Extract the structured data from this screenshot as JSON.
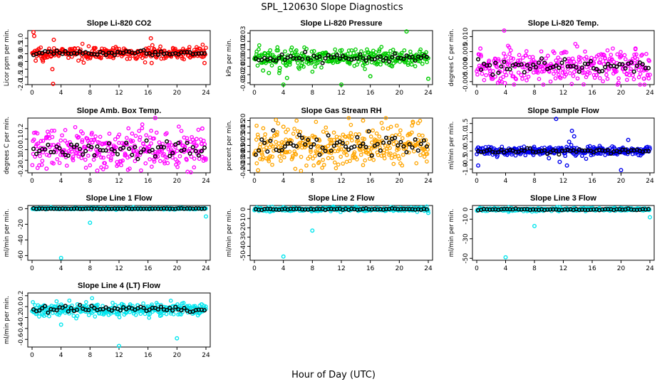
{
  "figure": {
    "title": "SPL_120630  Slope Diagnostics",
    "xlabel": "Hour of Day (UTC)"
  },
  "chart_data": [
    {
      "type": "scatter",
      "title": "Slope Li-820 CO2",
      "ylabel": "Licor ppm per min.",
      "color": "#ff0000",
      "xlim": [
        0,
        24
      ],
      "xticks": [
        0,
        4,
        8,
        12,
        16,
        20,
        24
      ],
      "ylim": [
        -2.0,
        1.5
      ],
      "yticks": [
        "-2.0",
        "-1.5",
        "-1.0",
        "-0.5",
        "0.0",
        "0.5",
        "1.0"
      ],
      "ytick_values": [
        -2.0,
        -1.5,
        -1.0,
        -0.5,
        0.0,
        0.5,
        1.0
      ],
      "spread": 0.18,
      "center": 0.05,
      "outliers": [
        [
          0.2,
          1.4
        ],
        [
          0.3,
          1.15
        ],
        [
          0.5,
          -0.45
        ],
        [
          1.5,
          -0.5
        ],
        [
          2.8,
          -1.0
        ],
        [
          2.9,
          -1.95
        ],
        [
          3.0,
          0.9
        ],
        [
          16.4,
          1.0
        ],
        [
          16.6,
          0.55
        ],
        [
          16.5,
          -0.6
        ],
        [
          23.8,
          -0.6
        ]
      ]
    },
    {
      "type": "scatter",
      "title": "Slope Li-820 Pressure",
      "ylabel": "kPa per min.",
      "color": "#00cc00",
      "xlim": [
        0,
        24
      ],
      "xticks": [
        0,
        4,
        8,
        12,
        16,
        20,
        24
      ],
      "ylim": [
        -0.032,
        0.033
      ],
      "yticks": [
        "-0.03",
        "-0.02",
        "-0.01",
        "0.00",
        "0.01",
        "0.02",
        "0.03"
      ],
      "ytick_values": [
        -0.03,
        -0.02,
        -0.01,
        0.0,
        0.01,
        0.02,
        0.03
      ],
      "spread": 0.006,
      "center": 0.0,
      "outliers": [
        [
          1.2,
          -0.015
        ],
        [
          2.0,
          -0.018
        ],
        [
          3.5,
          -0.012
        ],
        [
          4.0,
          -0.033
        ],
        [
          4.5,
          -0.024
        ],
        [
          8.0,
          -0.005
        ],
        [
          12.0,
          -0.032
        ],
        [
          16.0,
          -0.022
        ],
        [
          19.0,
          -0.01
        ],
        [
          21.0,
          0.032
        ],
        [
          24.0,
          -0.025
        ]
      ]
    },
    {
      "type": "scatter",
      "title": "Slope Li-820 Temp.",
      "ylabel": "degrees C per min.",
      "color": "#ff00ff",
      "xlim": [
        0,
        24
      ],
      "xticks": [
        0,
        4,
        8,
        12,
        16,
        20,
        24
      ],
      "ylim": [
        -0.006,
        0.012
      ],
      "yticks": [
        "-0.005",
        "0.000",
        "0.005",
        "0.010"
      ],
      "ytick_values": [
        -0.005,
        0.0,
        0.005,
        0.01
      ],
      "spread": 0.0028,
      "center": 0.0002,
      "outliers": [
        [
          3.8,
          0.012
        ],
        [
          3.9,
          -0.0055
        ],
        [
          0.5,
          0.006
        ],
        [
          22.0,
          0.006
        ],
        [
          23.2,
          -0.004
        ]
      ]
    },
    {
      "type": "scatter",
      "title": "Slope Amb. Box Temp.",
      "ylabel": "degrees C per min.",
      "color": "#ff00ff",
      "xlim": [
        0,
        24
      ],
      "xticks": [
        0,
        4,
        8,
        12,
        16,
        20,
        24
      ],
      "ylim": [
        -0.22,
        0.3
      ],
      "yticks": [
        "-0.2",
        "-0.1",
        "0.0",
        "0.1",
        "0.2"
      ],
      "ytick_values": [
        -0.2,
        -0.1,
        0.0,
        0.1,
        0.2
      ],
      "spread": 0.09,
      "center": 0.0,
      "outliers": [
        [
          17.0,
          0.3
        ],
        [
          9.0,
          -0.2
        ],
        [
          2.0,
          -0.18
        ],
        [
          23.5,
          0.2
        ]
      ]
    },
    {
      "type": "scatter",
      "title": "Slope Gas Stream RH",
      "ylabel": "percent per min.",
      "color": "#ffa500",
      "xlim": [
        0,
        24
      ],
      "xticks": [
        0,
        4,
        8,
        12,
        16,
        20,
        24
      ],
      "ylim": [
        -0.22,
        0.22
      ],
      "yticks": [
        "-0.20",
        "-0.15",
        "-0.10",
        "-0.05",
        "0.00",
        "0.05",
        "0.10",
        "0.15",
        "0.20"
      ],
      "ytick_values": [
        -0.2,
        -0.15,
        -0.1,
        -0.05,
        0.0,
        0.05,
        0.1,
        0.15,
        0.2
      ],
      "spread": 0.085,
      "center": 0.0,
      "outliers": [
        [
          15.0,
          0.2
        ],
        [
          0.5,
          -0.2
        ],
        [
          4.0,
          0.15
        ]
      ]
    },
    {
      "type": "scatter",
      "title": "Slope Sample Flow",
      "ylabel": "ml/min per min.",
      "color": "#0000ee",
      "xlim": [
        0,
        24
      ],
      "xticks": [
        0,
        4,
        8,
        12,
        16,
        20,
        24
      ],
      "ylim": [
        -1.2,
        1.8
      ],
      "yticks": [
        "-1.0",
        "-0.5",
        "0.0",
        "0.5",
        "1.0",
        "1.5"
      ],
      "ytick_values": [
        -1.0,
        -0.5,
        0.0,
        0.5,
        1.0,
        1.5
      ],
      "spread": 0.12,
      "center": 0.0,
      "outliers": [
        [
          11.0,
          1.75
        ],
        [
          13.2,
          1.1
        ],
        [
          13.5,
          0.8
        ],
        [
          12.8,
          0.5
        ],
        [
          11.5,
          -0.6
        ],
        [
          12.5,
          -0.8
        ],
        [
          20.0,
          -1.05
        ],
        [
          21.0,
          0.6
        ],
        [
          0.2,
          -0.8
        ],
        [
          10.0,
          -0.4
        ]
      ]
    },
    {
      "type": "scatter",
      "title": "Slope Line 1 Flow",
      "ylabel": "ml/min per min.",
      "color": "#00e5ee",
      "xlim": [
        0,
        24
      ],
      "xticks": [
        0,
        4,
        8,
        12,
        16,
        20,
        24
      ],
      "ylim": [
        -66,
        4
      ],
      "yticks": [
        "-60",
        "-40",
        "-20",
        "0"
      ],
      "ytick_values": [
        -60,
        -40,
        -20,
        0
      ],
      "spread": 0.5,
      "center": 0.0,
      "outliers": [
        [
          4.0,
          -63.0
        ],
        [
          8.0,
          -18.0
        ],
        [
          24.0,
          -10.0
        ]
      ]
    },
    {
      "type": "scatter",
      "title": "Slope Line 2 Flow",
      "ylabel": "ml/min per min.",
      "color": "#00e5ee",
      "xlim": [
        0,
        24
      ],
      "xticks": [
        0,
        4,
        8,
        12,
        16,
        20,
        24
      ],
      "ylim": [
        -55,
        4
      ],
      "yticks": [
        "-50",
        "-40",
        "-30",
        "-20",
        "-10",
        "0"
      ],
      "ytick_values": [
        -50,
        -40,
        -30,
        -20,
        -10,
        0
      ],
      "spread": 1.0,
      "center": 0.0,
      "outliers": [
        [
          4.0,
          -51.0
        ],
        [
          8.0,
          -23.0
        ],
        [
          24.0,
          -4.0
        ]
      ]
    },
    {
      "type": "scatter",
      "title": "Slope Line 3 Flow",
      "ylabel": "ml/min per min.",
      "color": "#00e5ee",
      "xlim": [
        0,
        24
      ],
      "xticks": [
        0,
        4,
        8,
        12,
        16,
        20,
        24
      ],
      "ylim": [
        -52,
        4
      ],
      "yticks": [
        "-50",
        "-30",
        "-10",
        "0"
      ],
      "ytick_values": [
        -50,
        -30,
        -10,
        0
      ],
      "spread": 0.8,
      "center": 0.0,
      "outliers": [
        [
          4.0,
          -49.0
        ],
        [
          8.0,
          -17.0
        ],
        [
          24.0,
          -8.0
        ]
      ]
    },
    {
      "type": "scatter",
      "title": "Slope Line 4 (LT) Flow",
      "ylabel": "ml/min per min.",
      "color": "#00e5ee",
      "xlim": [
        0,
        24
      ],
      "xticks": [
        0,
        4,
        8,
        12,
        16,
        20,
        24
      ],
      "ylim": [
        -0.74,
        0.25
      ],
      "yticks": [
        "-0.6",
        "-0.4",
        "-0.2",
        "0.0",
        "0.2"
      ],
      "ytick_values": [
        -0.6,
        -0.4,
        -0.2,
        0.0,
        0.2
      ],
      "spread": 0.06,
      "center": -0.05,
      "outliers": [
        [
          4.0,
          -0.33
        ],
        [
          12.0,
          -0.72
        ],
        [
          20.0,
          -0.58
        ]
      ]
    }
  ]
}
